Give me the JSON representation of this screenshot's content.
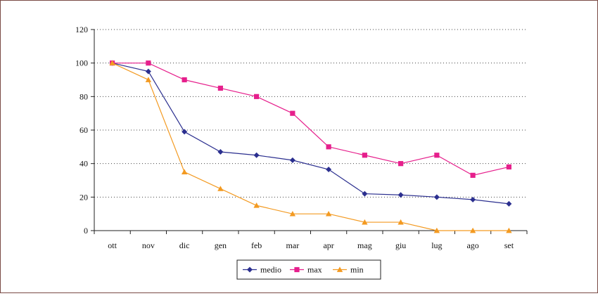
{
  "chart_data": {
    "type": "line",
    "title": "",
    "xlabel": "",
    "ylabel": "",
    "categories": [
      "ott",
      "nov",
      "dic",
      "gen",
      "feb",
      "mar",
      "apr",
      "mag",
      "giu",
      "lug",
      "ago",
      "set"
    ],
    "ylim": [
      0,
      120
    ],
    "yticks": [
      0,
      20,
      40,
      60,
      80,
      100,
      120
    ],
    "grid": "horizontal dotted",
    "legend_position": "bottom-center",
    "series": [
      {
        "name": "medio",
        "color": "#2b2f8f",
        "marker": "diamond",
        "values": [
          100,
          95,
          59,
          47,
          45,
          42,
          36.5,
          22,
          21.3,
          20,
          18.5,
          16
        ]
      },
      {
        "name": "max",
        "color": "#e61f8c",
        "marker": "square",
        "values": [
          100,
          100,
          90,
          85,
          80,
          70,
          50,
          45,
          40,
          45,
          33,
          38
        ]
      },
      {
        "name": "min",
        "color": "#f39a21",
        "marker": "triangle",
        "values": [
          100,
          90,
          35,
          25,
          15,
          10,
          10,
          5,
          5,
          0,
          0,
          0
        ]
      }
    ]
  }
}
